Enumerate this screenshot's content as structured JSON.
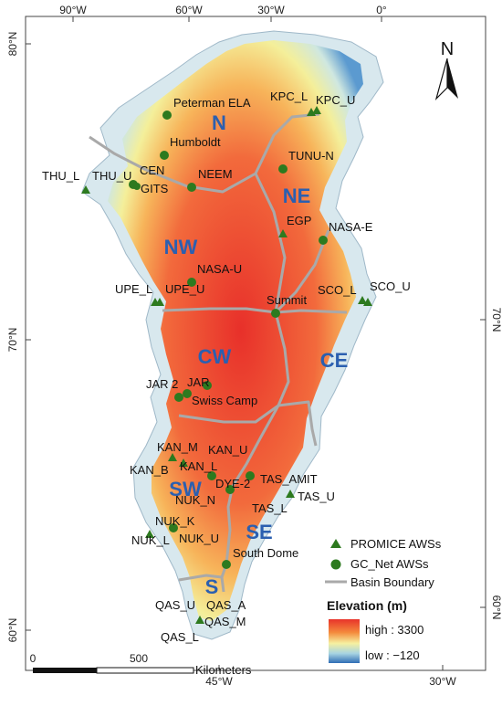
{
  "map": {
    "lon_ticks_top": [
      "90°W",
      "60°W",
      "30°W",
      "0°"
    ],
    "lon_ticks_bottom": [
      "45°W",
      "30°W"
    ],
    "lat_ticks_left": [
      "80°N",
      "70°N",
      "60°N"
    ],
    "lat_ticks_right": [
      "70°N",
      "60°N"
    ],
    "north_label": "N",
    "regions": [
      "N",
      "NE",
      "NW",
      "CW",
      "CE",
      "SW",
      "SE",
      "S"
    ],
    "stations": [
      {
        "label": "Peterman ELA",
        "kind": "gcnet"
      },
      {
        "label": "KPC_L",
        "kind": "promice"
      },
      {
        "label": "KPC_U",
        "kind": "promice"
      },
      {
        "label": "Humboldt",
        "kind": "gcnet"
      },
      {
        "label": "TUNU-N",
        "kind": "gcnet"
      },
      {
        "label": "THU_L",
        "kind": "promice"
      },
      {
        "label": "THU_U",
        "kind": "promice"
      },
      {
        "label": "CEN",
        "kind": "gcnet"
      },
      {
        "label": "GITS",
        "kind": "gcnet"
      },
      {
        "label": "NEEM",
        "kind": "gcnet"
      },
      {
        "label": "EGP",
        "kind": "promice"
      },
      {
        "label": "NASA-E",
        "kind": "gcnet"
      },
      {
        "label": "NASA-U",
        "kind": "gcnet"
      },
      {
        "label": "UPE_L",
        "kind": "promice"
      },
      {
        "label": "UPE_U",
        "kind": "promice"
      },
      {
        "label": "SCO_L",
        "kind": "promice"
      },
      {
        "label": "SCO_U",
        "kind": "promice"
      },
      {
        "label": "Summit",
        "kind": "gcnet"
      },
      {
        "label": "JAR 2",
        "kind": "gcnet"
      },
      {
        "label": "JAR",
        "kind": "gcnet"
      },
      {
        "label": "Swiss Camp",
        "kind": "gcnet"
      },
      {
        "label": "KAN_M",
        "kind": "promice"
      },
      {
        "label": "KAN_U",
        "kind": "promice"
      },
      {
        "label": "KAN_B",
        "kind": "promice"
      },
      {
        "label": "KAN_L",
        "kind": "promice"
      },
      {
        "label": "DYE-2",
        "kind": "gcnet"
      },
      {
        "label": "TAS_AMIT",
        "kind": "gcnet"
      },
      {
        "label": "NUK_N",
        "kind": "promice"
      },
      {
        "label": "TAS_U",
        "kind": "promice"
      },
      {
        "label": "TAS_L",
        "kind": "promice"
      },
      {
        "label": "NUK_K",
        "kind": "promice"
      },
      {
        "label": "NUK_L",
        "kind": "promice"
      },
      {
        "label": "NUK_U",
        "kind": "promice"
      },
      {
        "label": "South Dome",
        "kind": "gcnet"
      },
      {
        "label": "QAS_U",
        "kind": "promice"
      },
      {
        "label": "QAS_A",
        "kind": "promice"
      },
      {
        "label": "QAS_M",
        "kind": "promice"
      },
      {
        "label": "QAS_L",
        "kind": "promice"
      }
    ]
  },
  "legend": {
    "promice": "PROMICE AWSs",
    "gcnet": "GC_Net AWSs",
    "basin": "Basin Boundary",
    "elev_title": "Elevation (m)",
    "high": "high : 3300",
    "low": "low : −120"
  },
  "scale": {
    "zero": "0",
    "five_hundred": "500",
    "unit": "Kilometers"
  },
  "colors": {
    "promice": "#2d7a1f",
    "gcnet": "#2d7a1f",
    "basin": "#a9a9a9",
    "region_text": "#2b5fb0",
    "high": "#e8332a",
    "low": "#2f6db5"
  }
}
